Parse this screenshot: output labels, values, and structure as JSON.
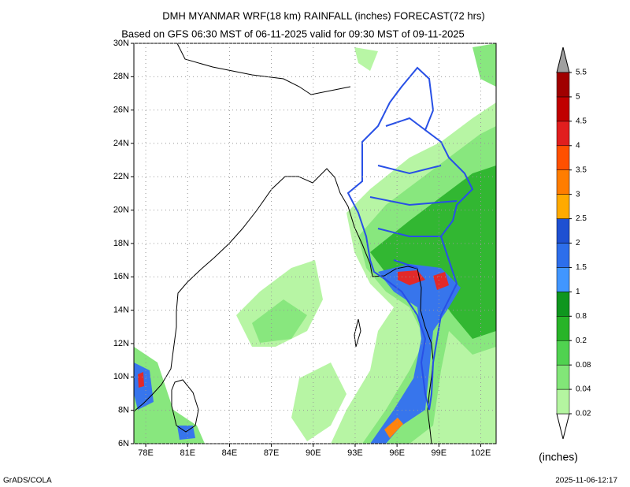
{
  "chart_data": {
    "type": "contour-map",
    "title": "DMH MYANMAR WRF(18 km) RAINFALL (inches) FORECAST(72 hrs)",
    "subtitle": "Based on GFS 06:30 MST of 06-11-2025 valid for 09:30 MST of 09-11-2025",
    "xlim": [
      77.15,
      103.1
    ],
    "ylim": [
      6,
      30
    ],
    "xticks": [
      {
        "value": 78,
        "label": "78E"
      },
      {
        "value": 81,
        "label": "81E"
      },
      {
        "value": 84,
        "label": "84E"
      },
      {
        "value": 87,
        "label": "87E"
      },
      {
        "value": 90,
        "label": "90E"
      },
      {
        "value": 93,
        "label": "93E"
      },
      {
        "value": 96,
        "label": "96E"
      },
      {
        "value": 99,
        "label": "99E"
      },
      {
        "value": 102,
        "label": "102E"
      }
    ],
    "yticks": [
      {
        "value": 6,
        "label": "6N"
      },
      {
        "value": 8,
        "label": "8N"
      },
      {
        "value": 10,
        "label": "10N"
      },
      {
        "value": 12,
        "label": "12N"
      },
      {
        "value": 14,
        "label": "14N"
      },
      {
        "value": 16,
        "label": "16N"
      },
      {
        "value": 18,
        "label": "18N"
      },
      {
        "value": 20,
        "label": "20N"
      },
      {
        "value": 22,
        "label": "22N"
      },
      {
        "value": 24,
        "label": "24N"
      },
      {
        "value": 26,
        "label": "26N"
      },
      {
        "value": 28,
        "label": "28N"
      },
      {
        "value": 30,
        "label": "30N"
      }
    ],
    "grid": true,
    "colorbar": {
      "label": "(inches)",
      "levels": [
        0.02,
        0.04,
        0.08,
        0.2,
        0.8,
        1,
        1.5,
        2,
        2.5,
        3,
        3.5,
        4,
        4.5,
        5,
        5.5
      ],
      "colors": [
        "#b4f5a0",
        "#82e678",
        "#50d250",
        "#28b428",
        "#0f961e",
        "#4196ff",
        "#2d6eeb",
        "#1e50d2",
        "#ffaa00",
        "#ff7d00",
        "#ff5000",
        "#e11e1e",
        "#c00000",
        "#a00000"
      ],
      "under_color": "#ffffff",
      "over_color": "#a0a0a0"
    },
    "footer_left": "GrADS/COLA",
    "footer_right": "2025-11-06-12:17"
  }
}
